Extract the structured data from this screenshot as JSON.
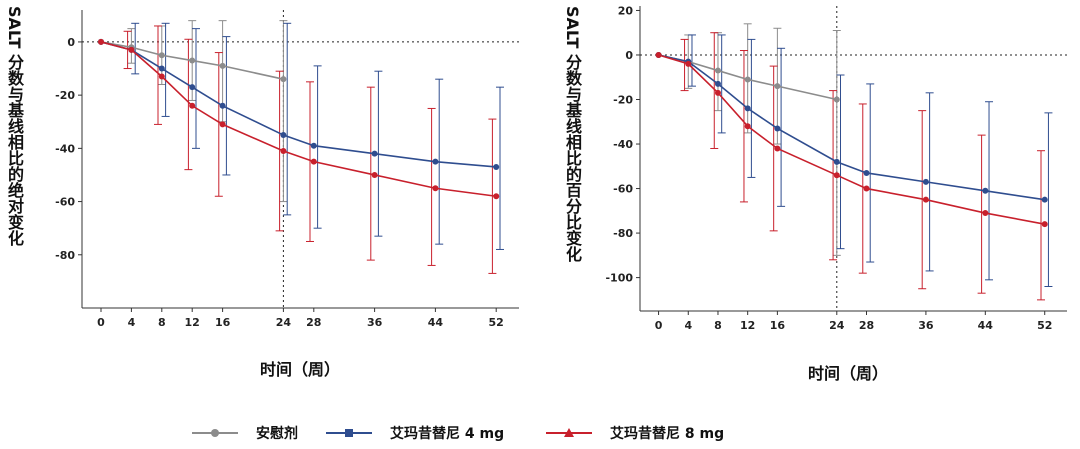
{
  "colors": {
    "placebo": "#8c8c8c",
    "dose4": "#2f4d8f",
    "dose8": "#c8202c"
  },
  "legend": {
    "placebo": "安慰剂",
    "dose4": "艾玛昔替尼 4 mg",
    "dose8": "艾玛昔替尼 8 mg"
  },
  "chart_data": [
    {
      "type": "line",
      "ylabel": "SALT 分数与基线相比的绝对变化",
      "xlabel": "时间（周）",
      "x": [
        0,
        4,
        8,
        12,
        16,
        24,
        28,
        36,
        44,
        52
      ],
      "ylim": [
        -100,
        12
      ],
      "yticks": [
        0,
        -20,
        -40,
        -60,
        -80
      ],
      "vline_x": 24,
      "hline_y": 0,
      "series": [
        {
          "key": "placebo",
          "name": "安慰剂",
          "x": [
            0,
            4,
            8,
            12,
            16,
            24
          ],
          "y": [
            0,
            -2,
            -5,
            -7,
            -9,
            -14
          ],
          "err_lo": [
            0,
            -8,
            -16,
            -22,
            -30,
            -60
          ],
          "err_hi": [
            0,
            5,
            6,
            8,
            8,
            8
          ]
        },
        {
          "key": "dose4",
          "name": "艾玛昔替尼 4 mg",
          "x": [
            0,
            4,
            8,
            12,
            16,
            24,
            28,
            36,
            44,
            52
          ],
          "y": [
            0,
            -3,
            -10,
            -17,
            -24,
            -35,
            -39,
            -42,
            -45,
            -47
          ],
          "err_lo": [
            0,
            -12,
            -28,
            -40,
            -50,
            -65,
            -70,
            -73,
            -76,
            -78
          ],
          "err_hi": [
            0,
            7,
            7,
            5,
            2,
            7,
            -9,
            -11,
            -14,
            -17
          ]
        },
        {
          "key": "dose8",
          "name": "艾玛昔替尼 8 mg",
          "x": [
            0,
            4,
            8,
            12,
            16,
            24,
            28,
            36,
            44,
            52
          ],
          "y": [
            0,
            -3,
            -13,
            -24,
            -31,
            -41,
            -45,
            -50,
            -55,
            -58
          ],
          "err_lo": [
            0,
            -10,
            -31,
            -48,
            -58,
            -71,
            -75,
            -82,
            -84,
            -87
          ],
          "err_hi": [
            0,
            4,
            6,
            1,
            -4,
            -11,
            -15,
            -17,
            -25,
            -29
          ]
        }
      ]
    },
    {
      "type": "line",
      "ylabel": "SALT 分数与基线相比的百分比变化",
      "xlabel": "时间（周）",
      "x": [
        0,
        4,
        8,
        12,
        16,
        24,
        28,
        36,
        44,
        52
      ],
      "ylim": [
        -115,
        22
      ],
      "yticks": [
        20,
        0,
        -20,
        -40,
        -60,
        -80,
        -100
      ],
      "vline_x": 24,
      "hline_y": 0,
      "series": [
        {
          "key": "placebo",
          "name": "安慰剂",
          "x": [
            0,
            4,
            8,
            12,
            16,
            24
          ],
          "y": [
            0,
            -3,
            -7,
            -11,
            -14,
            -20
          ],
          "err_lo": [
            0,
            -15,
            -25,
            -35,
            -40,
            -90
          ],
          "err_hi": [
            0,
            9,
            10,
            14,
            12,
            11
          ]
        },
        {
          "key": "dose4",
          "name": "艾玛昔替尼 4 mg",
          "x": [
            0,
            4,
            8,
            12,
            16,
            24,
            28,
            36,
            44,
            52
          ],
          "y": [
            0,
            -3,
            -13,
            -24,
            -33,
            -48,
            -53,
            -57,
            -61,
            -65
          ],
          "err_lo": [
            0,
            -14,
            -35,
            -55,
            -68,
            -87,
            -93,
            -97,
            -101,
            -104
          ],
          "err_hi": [
            0,
            9,
            9,
            7,
            3,
            -9,
            -13,
            -17,
            -21,
            -26
          ]
        },
        {
          "key": "dose8",
          "name": "艾玛昔替尼 8 mg",
          "x": [
            0,
            4,
            8,
            12,
            16,
            24,
            28,
            36,
            44,
            52
          ],
          "y": [
            0,
            -4,
            -17,
            -32,
            -42,
            -54,
            -60,
            -65,
            -71,
            -76
          ],
          "err_lo": [
            0,
            -16,
            -42,
            -66,
            -79,
            -92,
            -98,
            -105,
            -107,
            -110
          ],
          "err_hi": [
            0,
            7,
            10,
            2,
            -5,
            -16,
            -22,
            -25,
            -36,
            -43
          ]
        }
      ]
    }
  ]
}
